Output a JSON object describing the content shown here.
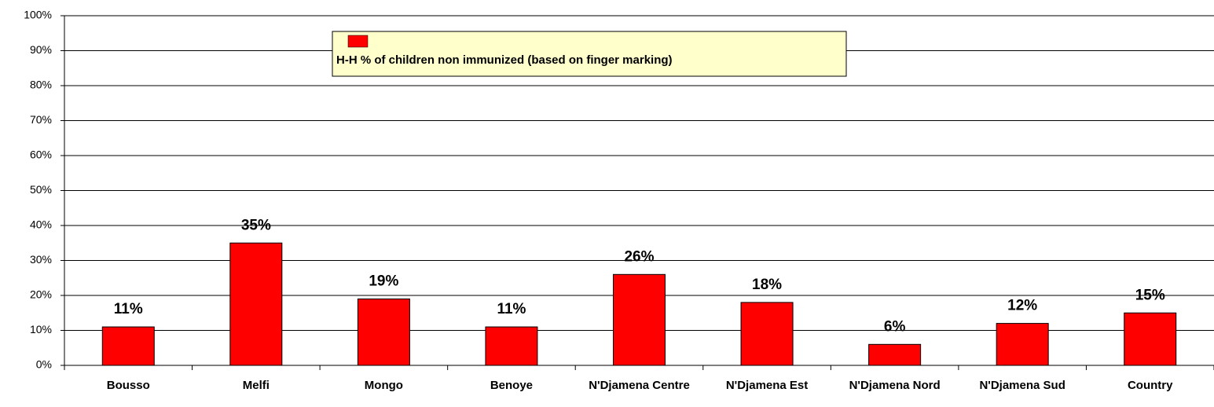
{
  "chart_data": {
    "type": "bar",
    "categories": [
      "Bousso",
      "Melfi",
      "Mongo",
      "Benoye",
      "N'Djamena Centre",
      "N'Djamena Est",
      "N'Djamena Nord",
      "N'Djamena Sud",
      "Country"
    ],
    "series": [
      {
        "name": "H-H % of children non immunized (based on finger marking)",
        "color": "#ff0000",
        "values": [
          11,
          35,
          19,
          11,
          26,
          18,
          6,
          12,
          15
        ],
        "value_labels": [
          "11%",
          "35%",
          "19%",
          "11%",
          "26%",
          "18%",
          "6%",
          "12%",
          "15%"
        ]
      }
    ],
    "ylim": [
      0,
      100
    ],
    "yticks": [
      {
        "value": 0,
        "label": "0%"
      },
      {
        "value": 10,
        "label": "10%"
      },
      {
        "value": 20,
        "label": "20%"
      },
      {
        "value": 30,
        "label": "30%"
      },
      {
        "value": 40,
        "label": "40%"
      },
      {
        "value": 50,
        "label": "50%"
      },
      {
        "value": 60,
        "label": "60%"
      },
      {
        "value": 70,
        "label": "70%"
      },
      {
        "value": 80,
        "label": "80%"
      },
      {
        "value": 90,
        "label": "90%"
      },
      {
        "value": 100,
        "label": "100%"
      }
    ],
    "grid": true,
    "legend": "top"
  }
}
